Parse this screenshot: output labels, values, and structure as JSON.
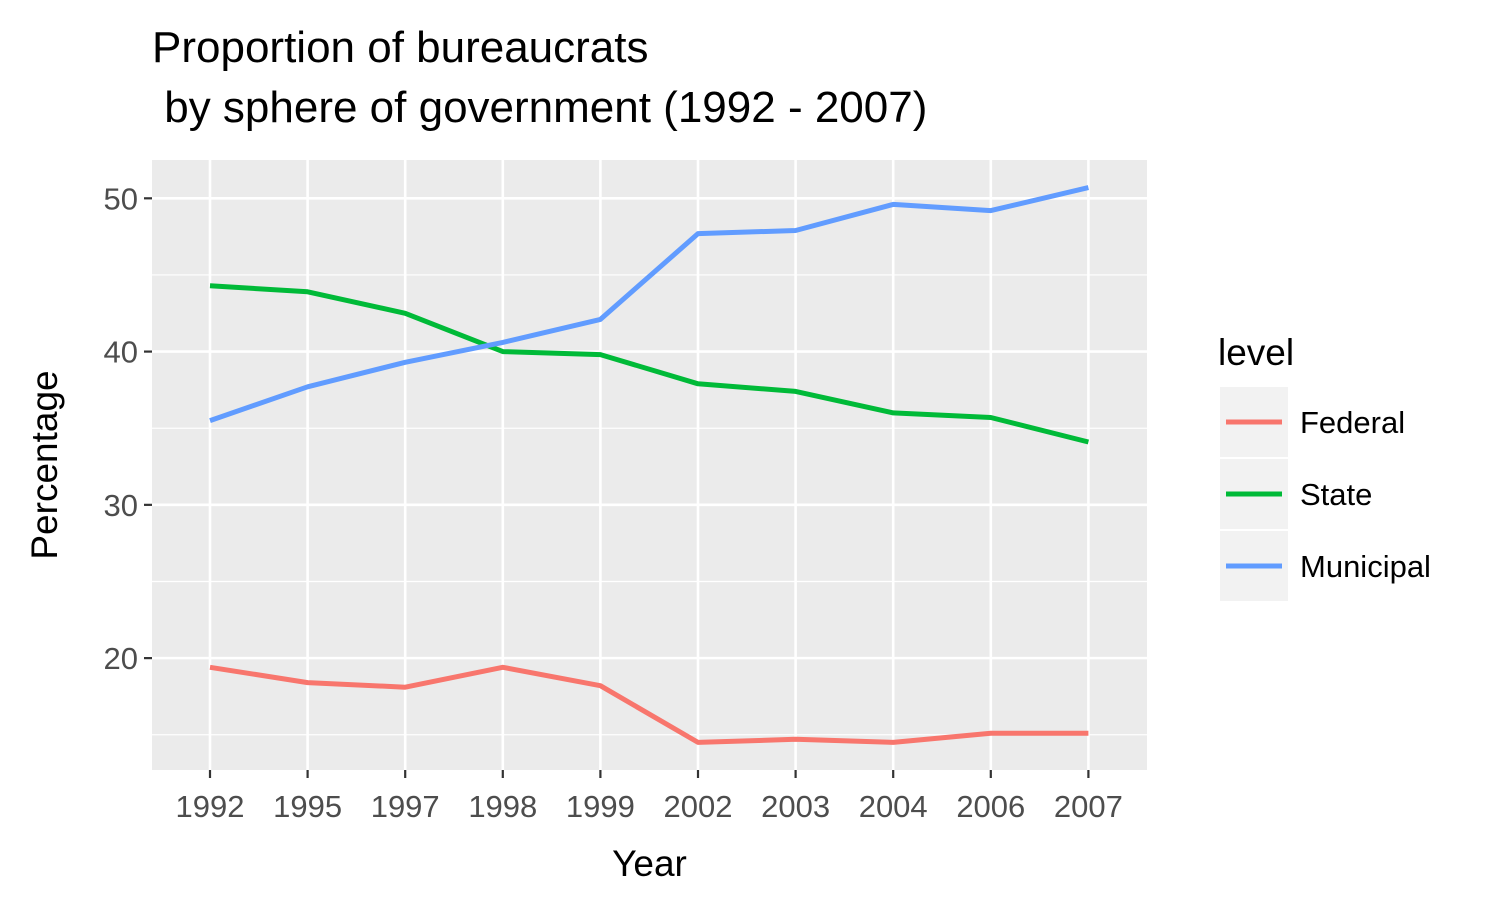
{
  "chart_data": {
    "type": "line",
    "title_line1": "Proportion of bureaucrats",
    "title_line2": " by sphere of government (1992 - 2007)",
    "xlabel": "Year",
    "ylabel": "Percentage",
    "x": [
      "1992",
      "1995",
      "1997",
      "1998",
      "1999",
      "2002",
      "2003",
      "2004",
      "2006",
      "2007"
    ],
    "y_ticks": [
      20,
      30,
      40,
      50
    ],
    "ylim": [
      12.7,
      52.5
    ],
    "grid": true,
    "legend": {
      "title": "level",
      "position": "right"
    },
    "series": [
      {
        "name": "Federal",
        "color": "#F8766D",
        "values": [
          19.4,
          18.4,
          18.1,
          19.4,
          18.2,
          14.5,
          14.7,
          14.5,
          15.1,
          15.1
        ]
      },
      {
        "name": "State",
        "color": "#00BA38",
        "values": [
          44.3,
          43.9,
          42.5,
          40.0,
          39.8,
          37.9,
          37.4,
          36.0,
          35.7,
          34.1
        ]
      },
      {
        "name": "Municipal",
        "color": "#619CFF",
        "values": [
          35.5,
          37.7,
          39.3,
          40.6,
          42.1,
          47.7,
          47.9,
          49.6,
          49.2,
          50.7
        ]
      }
    ]
  }
}
